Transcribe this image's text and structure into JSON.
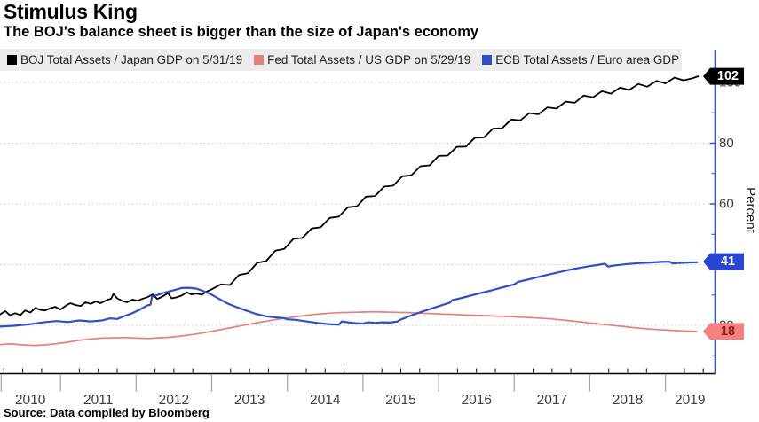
{
  "title": "Stimulus King",
  "subtitle": "The BOJ's balance sheet is bigger than the size of Japan's economy",
  "source": "Source: Data compiled by Bloomberg",
  "colors": {
    "legend_background": "#ececec",
    "grid": "#c9c9c9",
    "x_axis": "#000000",
    "y_axis": "#3a55cd",
    "year_separator": "#a0a0a0",
    "tick_label": "#3c3c3c"
  },
  "chart_data": {
    "type": "line",
    "title": "Stimulus King",
    "subtitle": "The BOJ's balance sheet is bigger than the size of Japan's economy",
    "xlabel": "",
    "ylabel": "Percent",
    "legend_position": "top",
    "grid": "dotted horizontal lines at major y ticks",
    "xlim": [
      2010.2,
      2019.65
    ],
    "ylim": [
      4.1,
      110.5
    ],
    "x_year_labels": [
      "2010",
      "2011",
      "2012",
      "2013",
      "2014",
      "2015",
      "2016",
      "2017",
      "2018",
      "2019"
    ],
    "x_separators": [
      2010.215,
      2011,
      2012,
      2013,
      2014,
      2015,
      2016,
      2017,
      2018,
      2019
    ],
    "y_ticks": [
      20,
      40,
      60,
      80,
      100
    ],
    "y_tick_labels": [
      "20",
      "40",
      "60",
      "80",
      "100"
    ],
    "y_minor_ticks": [
      10,
      30,
      50,
      70,
      90
    ],
    "series": [
      {
        "name": "BOJ Total Assets / Japan GDP on 5/31/19",
        "color": "#000000",
        "width": 1.8,
        "end_label": "102",
        "end_value": 102,
        "badge_fill": "#000000",
        "badge_text_color": "#ffffff",
        "points": [
          [
            2010.2,
            23.6
          ],
          [
            2010.27,
            24.7
          ],
          [
            2010.33,
            23.3
          ],
          [
            2010.4,
            24.0
          ],
          [
            2010.47,
            23.4
          ],
          [
            2010.53,
            24.9
          ],
          [
            2010.6,
            24.2
          ],
          [
            2010.67,
            25.8
          ],
          [
            2010.73,
            25.1
          ],
          [
            2010.8,
            24.9
          ],
          [
            2010.87,
            25.7
          ],
          [
            2010.93,
            26.1
          ],
          [
            2011.0,
            25.2
          ],
          [
            2011.07,
            26.5
          ],
          [
            2011.13,
            27.3
          ],
          [
            2011.2,
            26.7
          ],
          [
            2011.27,
            26.4
          ],
          [
            2011.33,
            27.6
          ],
          [
            2011.4,
            27.1
          ],
          [
            2011.47,
            27.9
          ],
          [
            2011.53,
            27.3
          ],
          [
            2011.6,
            28.2
          ],
          [
            2011.67,
            28.8
          ],
          [
            2011.7,
            30.4
          ],
          [
            2011.75,
            28.9
          ],
          [
            2011.82,
            28.0
          ],
          [
            2011.88,
            27.6
          ],
          [
            2011.95,
            28.5
          ],
          [
            2012.02,
            28.1
          ],
          [
            2012.08,
            28.7
          ],
          [
            2012.15,
            29.3
          ],
          [
            2012.22,
            30.2
          ],
          [
            2012.28,
            28.7
          ],
          [
            2012.35,
            29.5
          ],
          [
            2012.42,
            30.6
          ],
          [
            2012.47,
            28.9
          ],
          [
            2012.53,
            29.2
          ],
          [
            2012.6,
            29.8
          ],
          [
            2012.67,
            30.9
          ],
          [
            2012.73,
            30.2
          ],
          [
            2012.8,
            30.5
          ],
          [
            2012.87,
            30.1
          ],
          [
            2012.93,
            31.1
          ],
          [
            2013.0,
            31.9
          ],
          [
            2013.12,
            33.5
          ],
          [
            2013.24,
            33.3
          ],
          [
            2013.36,
            36.6
          ],
          [
            2013.48,
            37.2
          ],
          [
            2013.6,
            40.6
          ],
          [
            2013.72,
            41.2
          ],
          [
            2013.84,
            44.6
          ],
          [
            2013.96,
            45.2
          ],
          [
            2014.08,
            48.5
          ],
          [
            2014.2,
            48.8
          ],
          [
            2014.32,
            51.9
          ],
          [
            2014.44,
            52.3
          ],
          [
            2014.56,
            55.4
          ],
          [
            2014.68,
            55.8
          ],
          [
            2014.8,
            58.9
          ],
          [
            2014.92,
            59.2
          ],
          [
            2015.04,
            62.4
          ],
          [
            2015.16,
            62.6
          ],
          [
            2015.28,
            65.7
          ],
          [
            2015.4,
            66.0
          ],
          [
            2015.52,
            69.1
          ],
          [
            2015.64,
            69.4
          ],
          [
            2015.76,
            72.4
          ],
          [
            2015.88,
            72.7
          ],
          [
            2016.0,
            75.8
          ],
          [
            2016.12,
            75.9
          ],
          [
            2016.24,
            78.8
          ],
          [
            2016.36,
            78.9
          ],
          [
            2016.48,
            81.8
          ],
          [
            2016.6,
            81.9
          ],
          [
            2016.72,
            84.8
          ],
          [
            2016.84,
            84.9
          ],
          [
            2016.96,
            87.8
          ],
          [
            2017.08,
            87.5
          ],
          [
            2017.2,
            89.9
          ],
          [
            2017.32,
            89.5
          ],
          [
            2017.44,
            91.8
          ],
          [
            2017.56,
            91.4
          ],
          [
            2017.68,
            93.7
          ],
          [
            2017.8,
            93.3
          ],
          [
            2017.92,
            95.7
          ],
          [
            2018.04,
            95.1
          ],
          [
            2018.16,
            97.1
          ],
          [
            2018.28,
            96.3
          ],
          [
            2018.4,
            98.3
          ],
          [
            2018.52,
            97.5
          ],
          [
            2018.64,
            99.5
          ],
          [
            2018.76,
            98.6
          ],
          [
            2018.88,
            100.5
          ],
          [
            2019.0,
            99.7
          ],
          [
            2019.12,
            101.6
          ],
          [
            2019.24,
            100.7
          ],
          [
            2019.36,
            101.4
          ],
          [
            2019.43,
            102.0
          ]
        ]
      },
      {
        "name": "Fed Total Assets / US GDP on 5/29/19",
        "color": "#e5807b",
        "width": 1.7,
        "end_label": "18",
        "end_value": 18,
        "badge_fill": "#f48080",
        "badge_text_color": "#8c1d18",
        "points": [
          [
            2010.2,
            13.7
          ],
          [
            2010.35,
            13.9
          ],
          [
            2010.5,
            13.6
          ],
          [
            2010.65,
            13.4
          ],
          [
            2010.8,
            13.6
          ],
          [
            2010.95,
            14.0
          ],
          [
            2011.1,
            14.5
          ],
          [
            2011.25,
            15.1
          ],
          [
            2011.4,
            15.5
          ],
          [
            2011.55,
            15.8
          ],
          [
            2011.7,
            15.9
          ],
          [
            2011.85,
            16.0
          ],
          [
            2012.0,
            15.8
          ],
          [
            2012.15,
            15.7
          ],
          [
            2012.3,
            15.9
          ],
          [
            2012.45,
            16.1
          ],
          [
            2012.6,
            16.5
          ],
          [
            2012.75,
            17.0
          ],
          [
            2012.9,
            17.6
          ],
          [
            2013.05,
            18.3
          ],
          [
            2013.2,
            19.0
          ],
          [
            2013.35,
            19.7
          ],
          [
            2013.5,
            20.4
          ],
          [
            2013.65,
            21.1
          ],
          [
            2013.8,
            21.7
          ],
          [
            2013.95,
            22.3
          ],
          [
            2014.1,
            22.8
          ],
          [
            2014.25,
            23.3
          ],
          [
            2014.4,
            23.7
          ],
          [
            2014.55,
            24.0
          ],
          [
            2014.7,
            24.2
          ],
          [
            2014.85,
            24.3
          ],
          [
            2015.0,
            24.4
          ],
          [
            2015.15,
            24.5
          ],
          [
            2015.3,
            24.4
          ],
          [
            2015.45,
            24.3
          ],
          [
            2015.6,
            24.2
          ],
          [
            2015.75,
            24.0
          ],
          [
            2015.9,
            23.9
          ],
          [
            2016.05,
            23.7
          ],
          [
            2016.2,
            23.6
          ],
          [
            2016.35,
            23.4
          ],
          [
            2016.5,
            23.3
          ],
          [
            2016.65,
            23.2
          ],
          [
            2016.8,
            23.0
          ],
          [
            2016.95,
            22.9
          ],
          [
            2017.1,
            22.7
          ],
          [
            2017.25,
            22.5
          ],
          [
            2017.4,
            22.3
          ],
          [
            2017.55,
            22.0
          ],
          [
            2017.7,
            21.6
          ],
          [
            2017.85,
            21.2
          ],
          [
            2018.0,
            20.8
          ],
          [
            2018.15,
            20.4
          ],
          [
            2018.3,
            20.0
          ],
          [
            2018.45,
            19.6
          ],
          [
            2018.6,
            19.2
          ],
          [
            2018.75,
            18.9
          ],
          [
            2018.9,
            18.6
          ],
          [
            2019.05,
            18.4
          ],
          [
            2019.2,
            18.2
          ],
          [
            2019.41,
            18.0
          ]
        ]
      },
      {
        "name": "ECB Total Assets / Euro area GDP",
        "color": "#2d4fc8",
        "width": 2.2,
        "end_label": "41",
        "end_value": 41,
        "badge_fill": "#2845d4",
        "badge_text_color": "#ffffff",
        "points": [
          [
            2010.2,
            19.6
          ],
          [
            2010.4,
            19.9
          ],
          [
            2010.6,
            20.4
          ],
          [
            2010.8,
            21.1
          ],
          [
            2010.95,
            21.4
          ],
          [
            2011.1,
            21.1
          ],
          [
            2011.25,
            21.6
          ],
          [
            2011.4,
            21.3
          ],
          [
            2011.55,
            21.6
          ],
          [
            2011.65,
            22.3
          ],
          [
            2011.75,
            22.1
          ],
          [
            2011.85,
            23.1
          ],
          [
            2011.95,
            24.0
          ],
          [
            2012.05,
            25.2
          ],
          [
            2012.15,
            26.6
          ],
          [
            2012.19,
            26.8
          ],
          [
            2012.21,
            29.4
          ],
          [
            2012.35,
            30.6
          ],
          [
            2012.5,
            31.6
          ],
          [
            2012.6,
            32.3
          ],
          [
            2012.7,
            32.4
          ],
          [
            2012.8,
            32.1
          ],
          [
            2012.9,
            31.2
          ],
          [
            2013.0,
            30.1
          ],
          [
            2013.1,
            28.7
          ],
          [
            2013.2,
            27.3
          ],
          [
            2013.32,
            26.1
          ],
          [
            2013.45,
            24.9
          ],
          [
            2013.58,
            23.8
          ],
          [
            2013.72,
            23.0
          ],
          [
            2013.85,
            22.6
          ],
          [
            2013.95,
            22.4
          ],
          [
            2014.0,
            22.0
          ],
          [
            2014.12,
            21.8
          ],
          [
            2014.25,
            21.3
          ],
          [
            2014.4,
            20.8
          ],
          [
            2014.55,
            20.4
          ],
          [
            2014.68,
            20.2
          ],
          [
            2014.72,
            21.3
          ],
          [
            2014.8,
            21.0
          ],
          [
            2014.9,
            20.7
          ],
          [
            2015.0,
            20.6
          ],
          [
            2015.08,
            21.0
          ],
          [
            2015.16,
            20.8
          ],
          [
            2015.25,
            21.0
          ],
          [
            2015.35,
            20.9
          ],
          [
            2015.45,
            21.2
          ],
          [
            2015.5,
            21.9
          ],
          [
            2015.6,
            22.9
          ],
          [
            2015.72,
            24.0
          ],
          [
            2015.84,
            25.0
          ],
          [
            2015.95,
            25.9
          ],
          [
            2016.05,
            26.7
          ],
          [
            2016.15,
            27.5
          ],
          [
            2016.18,
            28.3
          ],
          [
            2016.3,
            29.0
          ],
          [
            2016.42,
            29.8
          ],
          [
            2016.55,
            30.6
          ],
          [
            2016.68,
            31.4
          ],
          [
            2016.8,
            32.2
          ],
          [
            2016.92,
            33.0
          ],
          [
            2017.0,
            33.5
          ],
          [
            2017.05,
            34.3
          ],
          [
            2017.15,
            34.9
          ],
          [
            2017.25,
            35.5
          ],
          [
            2017.38,
            36.3
          ],
          [
            2017.5,
            37.0
          ],
          [
            2017.62,
            37.7
          ],
          [
            2017.75,
            38.4
          ],
          [
            2017.88,
            39.0
          ],
          [
            2018.0,
            39.5
          ],
          [
            2018.1,
            39.9
          ],
          [
            2018.2,
            40.3
          ],
          [
            2018.24,
            39.4
          ],
          [
            2018.35,
            39.8
          ],
          [
            2018.5,
            40.2
          ],
          [
            2018.65,
            40.5
          ],
          [
            2018.8,
            40.7
          ],
          [
            2018.95,
            40.9
          ],
          [
            2019.05,
            41.0
          ],
          [
            2019.1,
            40.4
          ],
          [
            2019.2,
            40.6
          ],
          [
            2019.3,
            40.7
          ],
          [
            2019.42,
            40.8
          ]
        ]
      }
    ]
  }
}
